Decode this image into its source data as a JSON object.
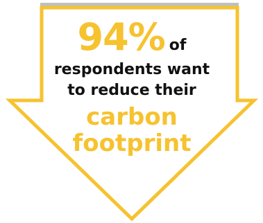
{
  "colors": {
    "accent": "#f6c22f",
    "text": "#111111",
    "bar": "#bfbfbf"
  },
  "headline": {
    "stat": "94%",
    "suffix": "of"
  },
  "lines": [
    "respondents want",
    "to reduce their",
    "carbon",
    "footprint"
  ]
}
